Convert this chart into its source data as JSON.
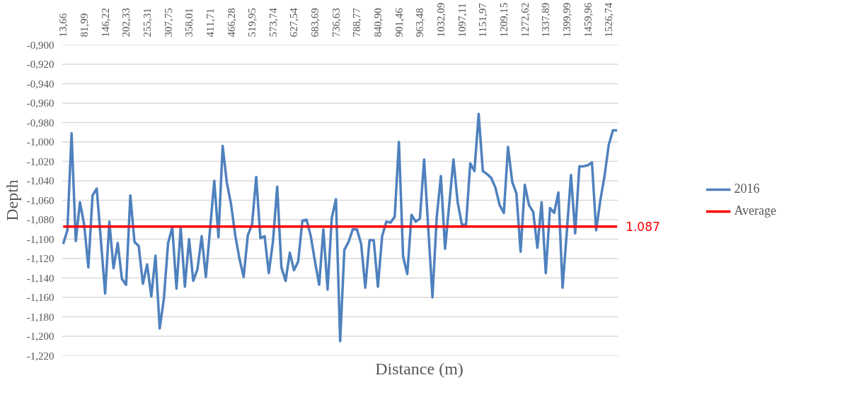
{
  "chart_data": {
    "type": "line",
    "xlabel": "Distance (m)",
    "ylabel": "Depth",
    "categories": [
      "13,66",
      null,
      null,
      null,
      null,
      "81,99",
      null,
      null,
      null,
      null,
      "146,22",
      null,
      null,
      null,
      null,
      "202,33",
      null,
      null,
      null,
      null,
      "255,31",
      null,
      null,
      null,
      null,
      "307,75",
      null,
      null,
      null,
      null,
      "358,01",
      null,
      null,
      null,
      null,
      "411,71",
      null,
      null,
      null,
      null,
      "466,28",
      null,
      null,
      null,
      null,
      "519,95",
      null,
      null,
      null,
      null,
      "573,74",
      null,
      null,
      null,
      null,
      "627,54",
      null,
      null,
      null,
      null,
      "683,69",
      null,
      null,
      null,
      null,
      "736,63",
      null,
      null,
      null,
      null,
      "788,77",
      null,
      null,
      null,
      null,
      "840,90",
      null,
      null,
      null,
      null,
      "901,46",
      null,
      null,
      null,
      null,
      "963,48",
      null,
      null,
      null,
      null,
      "1032,09",
      null,
      null,
      null,
      null,
      "1097,11",
      null,
      null,
      null,
      null,
      "1151,97",
      null,
      null,
      null,
      null,
      "1209,15",
      null,
      null,
      null,
      null,
      "1272,62",
      null,
      null,
      null,
      null,
      "1337,89",
      null,
      null,
      null,
      null,
      "1399,99",
      null,
      null,
      null,
      null,
      "1459,96",
      null,
      null,
      null,
      null,
      "1526,74",
      null,
      null
    ],
    "series": [
      {
        "name": "2016",
        "color": "#4f81bd",
        "values": [
          -1.105,
          -1.091,
          -0.991,
          -1.102,
          -1.062,
          -1.085,
          -1.129,
          -1.055,
          -1.048,
          -1.102,
          -1.156,
          -1.082,
          -1.13,
          -1.104,
          -1.141,
          -1.147,
          -1.055,
          -1.103,
          -1.107,
          -1.146,
          -1.126,
          -1.159,
          -1.117,
          -1.192,
          -1.161,
          -1.104,
          -1.088,
          -1.151,
          -1.088,
          -1.149,
          -1.1,
          -1.143,
          -1.131,
          -1.097,
          -1.139,
          -1.09,
          -1.04,
          -1.098,
          -1.004,
          -1.042,
          -1.064,
          -1.096,
          -1.12,
          -1.139,
          -1.096,
          -1.085,
          -1.036,
          -1.099,
          -1.097,
          -1.135,
          -1.102,
          -1.046,
          -1.129,
          -1.143,
          -1.114,
          -1.132,
          -1.123,
          -1.081,
          -1.08,
          -1.097,
          -1.123,
          -1.147,
          -1.09,
          -1.152,
          -1.078,
          -1.059,
          -1.205,
          -1.111,
          -1.103,
          -1.09,
          -1.09,
          -1.105,
          -1.15,
          -1.101,
          -1.101,
          -1.149,
          -1.097,
          -1.082,
          -1.083,
          -1.077,
          -1.0,
          -1.118,
          -1.136,
          -1.075,
          -1.082,
          -1.079,
          -1.018,
          -1.089,
          -1.16,
          -1.078,
          -1.035,
          -1.11,
          -1.064,
          -1.018,
          -1.062,
          -1.085,
          -1.085,
          -1.022,
          -1.03,
          -0.971,
          -1.03,
          -1.033,
          -1.037,
          -1.047,
          -1.065,
          -1.073,
          -1.005,
          -1.041,
          -1.053,
          -1.113,
          -1.044,
          -1.065,
          -1.072,
          -1.109,
          -1.062,
          -1.135,
          -1.068,
          -1.073,
          -1.052,
          -1.15,
          -1.093,
          -1.034,
          -1.094,
          -1.025,
          -1.025,
          -1.024,
          -1.021,
          -1.091,
          -1.06,
          -1.035,
          -1.003,
          -0.988,
          -0.988
        ]
      },
      {
        "name": "Average",
        "color": "#ff0000",
        "values": [
          -1.087,
          -1.087,
          -1.087,
          -1.087,
          -1.087,
          -1.087,
          -1.087,
          -1.087,
          -1.087,
          -1.087,
          -1.087,
          -1.087,
          -1.087,
          -1.087,
          -1.087,
          -1.087,
          -1.087,
          -1.087,
          -1.087,
          -1.087,
          -1.087,
          -1.087,
          -1.087,
          -1.087,
          -1.087,
          -1.087,
          -1.087,
          -1.087,
          -1.087,
          -1.087,
          -1.087,
          -1.087,
          -1.087,
          -1.087,
          -1.087,
          -1.087,
          -1.087,
          -1.087,
          -1.087,
          -1.087,
          -1.087,
          -1.087,
          -1.087,
          -1.087,
          -1.087,
          -1.087,
          -1.087,
          -1.087,
          -1.087,
          -1.087,
          -1.087,
          -1.087,
          -1.087,
          -1.087,
          -1.087,
          -1.087,
          -1.087,
          -1.087,
          -1.087,
          -1.087,
          -1.087,
          -1.087,
          -1.087,
          -1.087,
          -1.087,
          -1.087,
          -1.087,
          -1.087,
          -1.087,
          -1.087,
          -1.087,
          -1.087,
          -1.087,
          -1.087,
          -1.087,
          -1.087,
          -1.087,
          -1.087,
          -1.087,
          -1.087,
          -1.087,
          -1.087,
          -1.087,
          -1.087,
          -1.087,
          -1.087,
          -1.087,
          -1.087,
          -1.087,
          -1.087,
          -1.087,
          -1.087,
          -1.087,
          -1.087,
          -1.087,
          -1.087,
          -1.087,
          -1.087,
          -1.087,
          -1.087,
          -1.087,
          -1.087,
          -1.087,
          -1.087,
          -1.087,
          -1.087,
          -1.087,
          -1.087,
          -1.087,
          -1.087,
          -1.087,
          -1.087,
          -1.087,
          -1.087,
          -1.087,
          -1.087,
          -1.087,
          -1.087,
          -1.087,
          -1.087,
          -1.087,
          -1.087,
          -1.087,
          -1.087,
          -1.087,
          -1.087,
          -1.087,
          -1.087,
          -1.087,
          -1.087,
          -1.087,
          -1.087,
          -1.087
        ]
      }
    ],
    "annotations": [
      "1.087"
    ],
    "ylim": [
      -1.22,
      -0.9
    ],
    "yticks": [
      {
        "value": -0.9,
        "label": "-0,900"
      },
      {
        "value": -0.92,
        "label": "-0,920"
      },
      {
        "value": -0.94,
        "label": "-0,940"
      },
      {
        "value": -0.96,
        "label": "-0,960"
      },
      {
        "value": -0.98,
        "label": "-0,980"
      },
      {
        "value": -1.0,
        "label": "-1,000"
      },
      {
        "value": -1.02,
        "label": "-1,020"
      },
      {
        "value": -1.04,
        "label": "-1,040"
      },
      {
        "value": -1.06,
        "label": "-1,060"
      },
      {
        "value": -1.08,
        "label": "-1,080"
      },
      {
        "value": -1.1,
        "label": "-1,100"
      },
      {
        "value": -1.12,
        "label": "-1,120"
      },
      {
        "value": -1.14,
        "label": "-1,140"
      },
      {
        "value": -1.16,
        "label": "-1,160"
      },
      {
        "value": -1.18,
        "label": "-1,180"
      },
      {
        "value": -1.2,
        "label": "-1,200"
      },
      {
        "value": -1.22,
        "label": "-1,220"
      }
    ],
    "grid": "y",
    "legend": "right",
    "line_style": "solid",
    "marker": "none"
  }
}
